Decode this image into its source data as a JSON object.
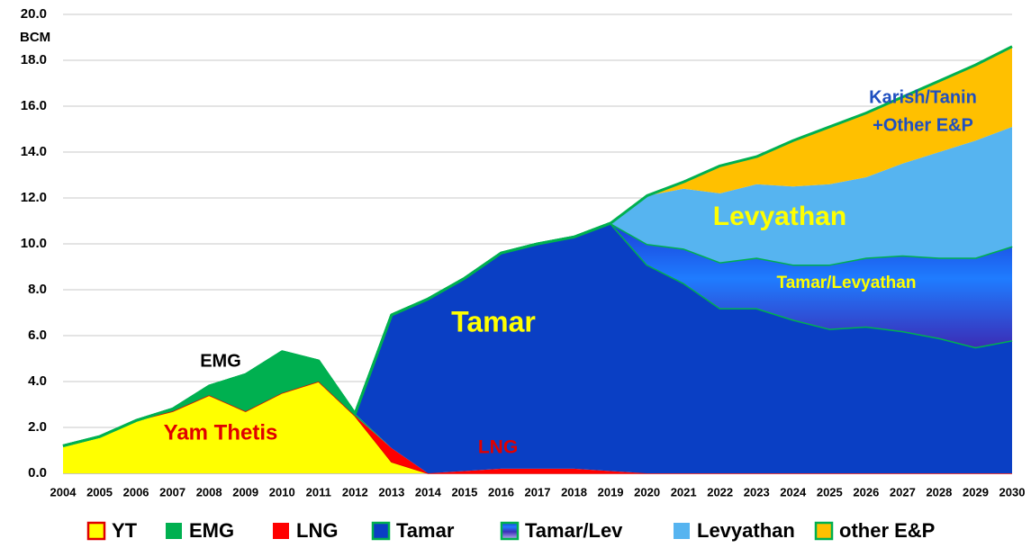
{
  "chart_data": {
    "type": "stacked-area",
    "y_axis_label": "BCM",
    "categories": [
      "2004",
      "2005",
      "2006",
      "2007",
      "2008",
      "2009",
      "2010",
      "2011",
      "2012",
      "2013",
      "2014",
      "2015",
      "2016",
      "2017",
      "2018",
      "2019",
      "2020",
      "2021",
      "2022",
      "2023",
      "2024",
      "2025",
      "2026",
      "2027",
      "2028",
      "2029",
      "2030"
    ],
    "ylim": [
      0,
      20
    ],
    "yticks": [
      {
        "value": 0,
        "label": "0.0"
      },
      {
        "value": 2,
        "label": "2.0"
      },
      {
        "value": 4,
        "label": "4.0"
      },
      {
        "value": 6,
        "label": "6.0"
      },
      {
        "value": 8,
        "label": "8.0"
      },
      {
        "value": 10,
        "label": "10.0"
      },
      {
        "value": 12,
        "label": "12.0"
      },
      {
        "value": 14,
        "label": "14.0"
      },
      {
        "value": 16,
        "label": "16.0"
      },
      {
        "value": 18,
        "label": "18.0"
      },
      {
        "value": 20,
        "label": "20.0"
      }
    ],
    "grid": true,
    "series": [
      {
        "name": "YT",
        "color": "#ffff00",
        "edge": "#e00000",
        "values": [
          1.2,
          1.6,
          2.3,
          2.7,
          3.4,
          2.7,
          3.5,
          4.0,
          2.5,
          0.5,
          0,
          0,
          0,
          0,
          0,
          0,
          0,
          0,
          0,
          0,
          0,
          0,
          0,
          0,
          0,
          0,
          0
        ]
      },
      {
        "name": "LNG",
        "color": "#ff0000",
        "values": [
          0,
          0,
          0,
          0,
          0,
          0,
          0,
          0,
          0,
          0.6,
          0,
          0.1,
          0.2,
          0.2,
          0.2,
          0.1,
          0,
          0,
          0,
          0,
          0,
          0,
          0,
          0,
          0,
          0,
          0
        ]
      },
      {
        "name": "EMG",
        "color": "#00b050",
        "values": [
          0,
          0,
          0,
          0.1,
          0.4,
          1.6,
          1.8,
          0.9,
          0.1,
          0,
          0,
          0,
          0,
          0,
          0,
          0,
          0,
          0,
          0,
          0,
          0,
          0,
          0,
          0,
          0,
          0,
          0
        ]
      },
      {
        "name": "Tamar",
        "color": "#0a3fc4",
        "edge": "#00b050",
        "values": [
          0,
          0,
          0,
          0,
          0,
          0,
          0,
          0,
          0,
          5.8,
          7.6,
          8.4,
          9.4,
          9.8,
          10.1,
          10.8,
          9.1,
          8.3,
          7.2,
          7.2,
          6.7,
          6.3,
          6.4,
          6.2,
          5.9,
          5.5,
          5.8
        ]
      },
      {
        "name": "Tamar/Lev",
        "color": "#3a4fe0",
        "edge": "#00b050",
        "values": [
          0,
          0,
          0,
          0,
          0,
          0,
          0,
          0,
          0,
          0,
          0,
          0,
          0,
          0,
          0,
          0,
          0.9,
          1.5,
          2.0,
          2.2,
          2.4,
          2.8,
          3.0,
          3.3,
          3.5,
          3.9,
          4.1
        ]
      },
      {
        "name": "Levyathan",
        "color": "#56b4f0",
        "values": [
          0,
          0,
          0,
          0,
          0,
          0,
          0,
          0,
          0,
          0,
          0,
          0,
          0,
          0,
          0,
          0,
          2.1,
          2.6,
          3.0,
          3.2,
          3.4,
          3.5,
          3.5,
          4.0,
          4.6,
          5.1,
          5.2
        ]
      },
      {
        "name": "other E&P",
        "color": "#ffc000",
        "edge": "#00b050",
        "values": [
          0,
          0,
          0,
          0,
          0,
          0,
          0,
          0,
          0,
          0,
          0,
          0,
          0,
          0,
          0,
          0,
          0,
          0.3,
          1.2,
          1.2,
          2.0,
          2.5,
          2.8,
          2.9,
          3.1,
          3.3,
          3.5
        ]
      }
    ],
    "legend_order": [
      "YT",
      "EMG",
      "LNG",
      "Tamar",
      "Tamar/Lev",
      "Levyathan",
      "other E&P"
    ],
    "annotations": [
      "EMG",
      "Yam Thetis",
      "LNG",
      "Tamar",
      "Levyathan",
      "Tamar/Levyathan",
      "Karish/Tanin",
      "+Other E&P"
    ]
  }
}
